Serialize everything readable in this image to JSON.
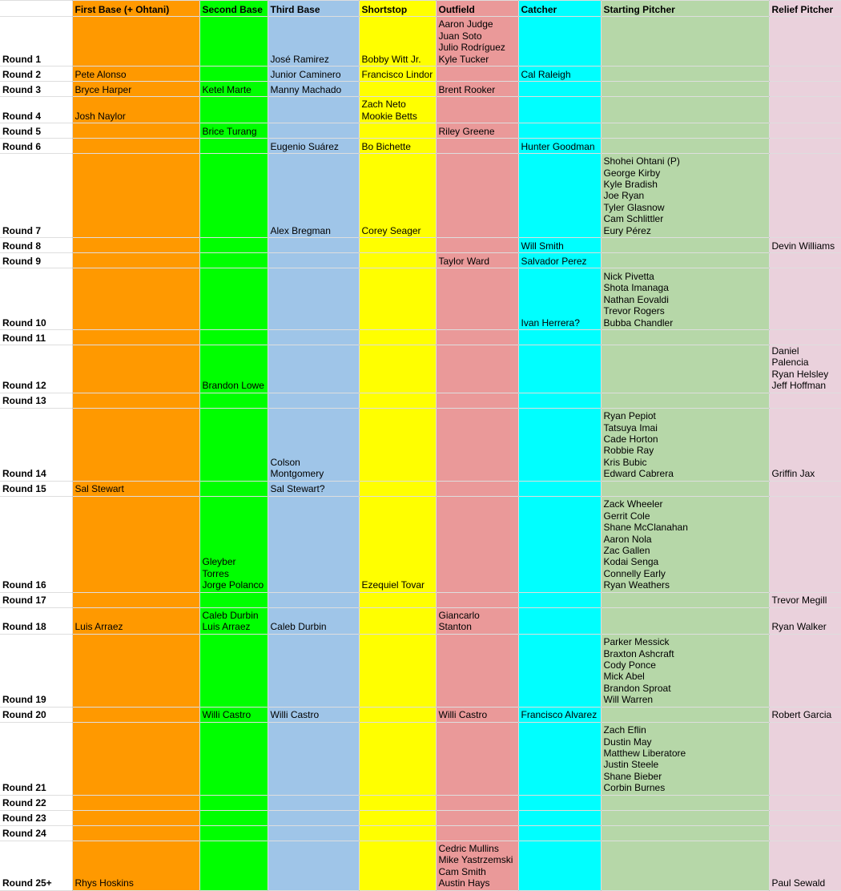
{
  "column_colors": [
    "#ffffff",
    "#ff9900",
    "#00ff00",
    "#9fc5e8",
    "#ffff00",
    "#ea9999",
    "#00ffff",
    "#b6d7a8",
    "#ead1dc"
  ],
  "headers": [
    "",
    "First Base (+ Ohtani)",
    "Second Base",
    "Third Base",
    "Shortstop",
    "Outfield",
    "Catcher",
    "Starting Pitcher",
    "Relief Pitcher"
  ],
  "rounds": [
    {
      "label": "Round 1",
      "cells": [
        "",
        "",
        "José Ramirez",
        "Bobby Witt Jr.",
        "Aaron Judge\nJuan Soto\nJulio Rodríguez\nKyle Tucker",
        "",
        "",
        ""
      ]
    },
    {
      "label": "Round 2",
      "cells": [
        "Pete Alonso",
        "",
        "Junior Caminero",
        "Francisco Lindor",
        "",
        "Cal Raleigh",
        "",
        ""
      ]
    },
    {
      "label": "Round 3",
      "cells": [
        "Bryce Harper",
        "Ketel Marte",
        "Manny Machado",
        "",
        "Brent Rooker",
        "",
        "",
        ""
      ]
    },
    {
      "label": "Round 4",
      "cells": [
        "Josh Naylor",
        "",
        "",
        "Zach Neto\nMookie Betts",
        "",
        "",
        "",
        ""
      ]
    },
    {
      "label": "Round 5",
      "cells": [
        "",
        "Brice Turang",
        "",
        "",
        "Riley Greene",
        "",
        "",
        ""
      ]
    },
    {
      "label": "Round 6",
      "cells": [
        "",
        "",
        "Eugenio Suárez",
        "Bo Bichette",
        "",
        "Hunter Goodman",
        "",
        ""
      ]
    },
    {
      "label": "Round 7",
      "cells": [
        "",
        "",
        "Alex Bregman",
        "Corey Seager",
        "",
        "",
        "Shohei Ohtani (P)\nGeorge Kirby\nKyle Bradish\nJoe Ryan\nTyler Glasnow\nCam Schlittler\nEury Pérez",
        ""
      ]
    },
    {
      "label": "Round 8",
      "cells": [
        "",
        "",
        "",
        "",
        "",
        "Will Smith",
        "",
        "Devin Williams"
      ]
    },
    {
      "label": "Round 9",
      "cells": [
        "",
        "",
        "",
        "",
        "Taylor Ward",
        "Salvador Perez",
        "",
        ""
      ]
    },
    {
      "label": "Round 10",
      "cells": [
        "",
        "",
        "",
        "",
        "",
        "Ivan Herrera?",
        "Nick Pivetta\nShota Imanaga\nNathan Eovaldi\nTrevor Rogers\nBubba Chandler",
        ""
      ]
    },
    {
      "label": "Round 11",
      "cells": [
        "",
        "",
        "",
        "",
        "",
        "",
        "",
        ""
      ]
    },
    {
      "label": "Round 12",
      "cells": [
        "",
        "Brandon Lowe",
        "",
        "",
        "",
        "",
        "",
        "Daniel Palencia\nRyan Helsley\nJeff Hoffman"
      ]
    },
    {
      "label": "Round 13",
      "cells": [
        "",
        "",
        "",
        "",
        "",
        "",
        "",
        ""
      ]
    },
    {
      "label": "Round 14",
      "cells": [
        "",
        "",
        "Colson Montgomery",
        "",
        "",
        "",
        "Ryan Pepiot\nTatsuya Imai\nCade Horton\nRobbie Ray\nKris Bubic\nEdward Cabrera",
        "Griffin Jax"
      ]
    },
    {
      "label": "Round 15",
      "cells": [
        "Sal Stewart",
        "",
        "Sal Stewart?",
        "",
        "",
        "",
        "",
        ""
      ]
    },
    {
      "label": "Round 16",
      "cells": [
        "",
        "Gleyber Torres\nJorge Polanco",
        "",
        "Ezequiel Tovar",
        "",
        "",
        "Zack Wheeler\nGerrit Cole\nShane McClanahan\nAaron Nola\nZac Gallen\nKodai Senga\nConnelly Early\nRyan Weathers",
        ""
      ]
    },
    {
      "label": "Round 17",
      "cells": [
        "",
        "",
        "",
        "",
        "",
        "",
        "",
        "Trevor Megill"
      ]
    },
    {
      "label": "Round 18",
      "cells": [
        "Luis Arraez",
        "Caleb Durbin\nLuis Arraez",
        "Caleb Durbin",
        "",
        "Giancarlo Stanton",
        "",
        "",
        "Ryan Walker"
      ]
    },
    {
      "label": "Round 19",
      "cells": [
        "",
        "",
        "",
        "",
        "",
        "",
        "Parker Messick\nBraxton Ashcraft\nCody Ponce\nMick Abel\nBrandon Sproat\nWill Warren",
        ""
      ]
    },
    {
      "label": "Round 20",
      "cells": [
        "",
        "Willi Castro",
        "Willi Castro",
        "",
        "Willi Castro",
        "Francisco Alvarez",
        "",
        "Robert Garcia"
      ]
    },
    {
      "label": "Round 21",
      "cells": [
        "",
        "",
        "",
        "",
        "",
        "",
        "Zach Eflin\nDustin May\nMatthew Liberatore\nJustin Steele\nShane Bieber\nCorbin Burnes",
        ""
      ]
    },
    {
      "label": "Round 22",
      "cells": [
        "",
        "",
        "",
        "",
        "",
        "",
        "",
        ""
      ]
    },
    {
      "label": "Round 23",
      "cells": [
        "",
        "",
        "",
        "",
        "",
        "",
        "",
        ""
      ]
    },
    {
      "label": "Round 24",
      "cells": [
        "",
        "",
        "",
        "",
        "",
        "",
        "",
        ""
      ]
    },
    {
      "label": "Round 25+",
      "cells": [
        "Rhys Hoskins",
        "",
        "",
        "",
        "Cedric Mullins\nMike Yastrzemski\nCam Smith\nAustin Hays",
        "",
        "",
        "Paul Sewald"
      ]
    }
  ]
}
